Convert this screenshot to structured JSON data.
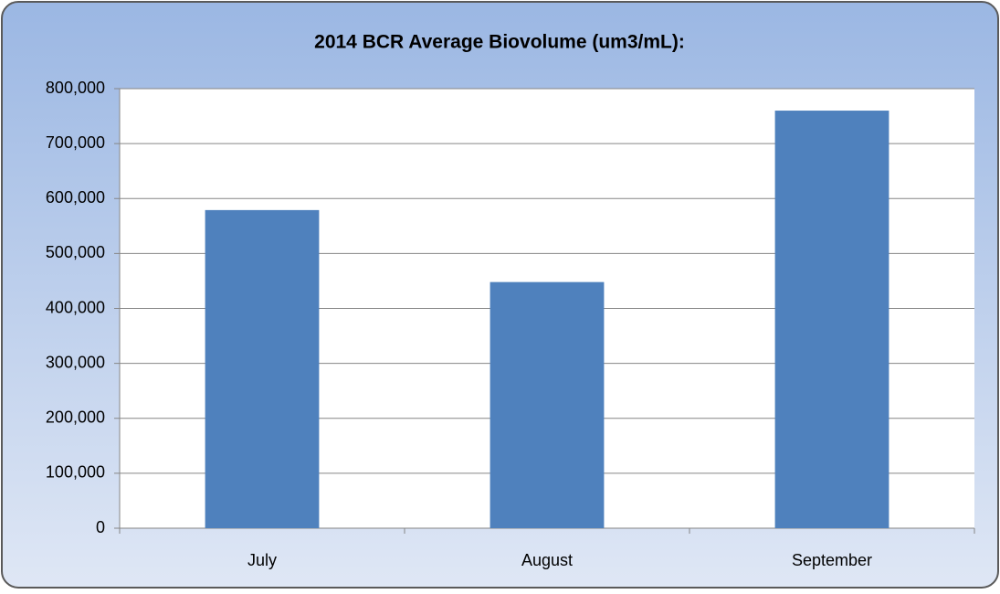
{
  "chart_data": {
    "type": "bar",
    "title": "2014 BCR Average Biovolume (um3/mL):",
    "categories": [
      "July",
      "August",
      "September"
    ],
    "values": [
      579000,
      448000,
      760000
    ],
    "color": "#4f81bd",
    "ylim": [
      0,
      800000
    ],
    "yticks": [
      0,
      {
        "value": 100000,
        "label": "100,000"
      },
      {
        "value": 200000,
        "label": "200,000"
      },
      {
        "value": 300000,
        "label": "300,000"
      },
      {
        "value": 400000,
        "label": "400,000"
      },
      {
        "value": 500000,
        "label": "500,000"
      },
      {
        "value": 600000,
        "label": "600,000"
      },
      {
        "value": 700000,
        "label": "700,000"
      },
      {
        "value": 800000,
        "label": "800,000"
      }
    ],
    "grid": true
  }
}
